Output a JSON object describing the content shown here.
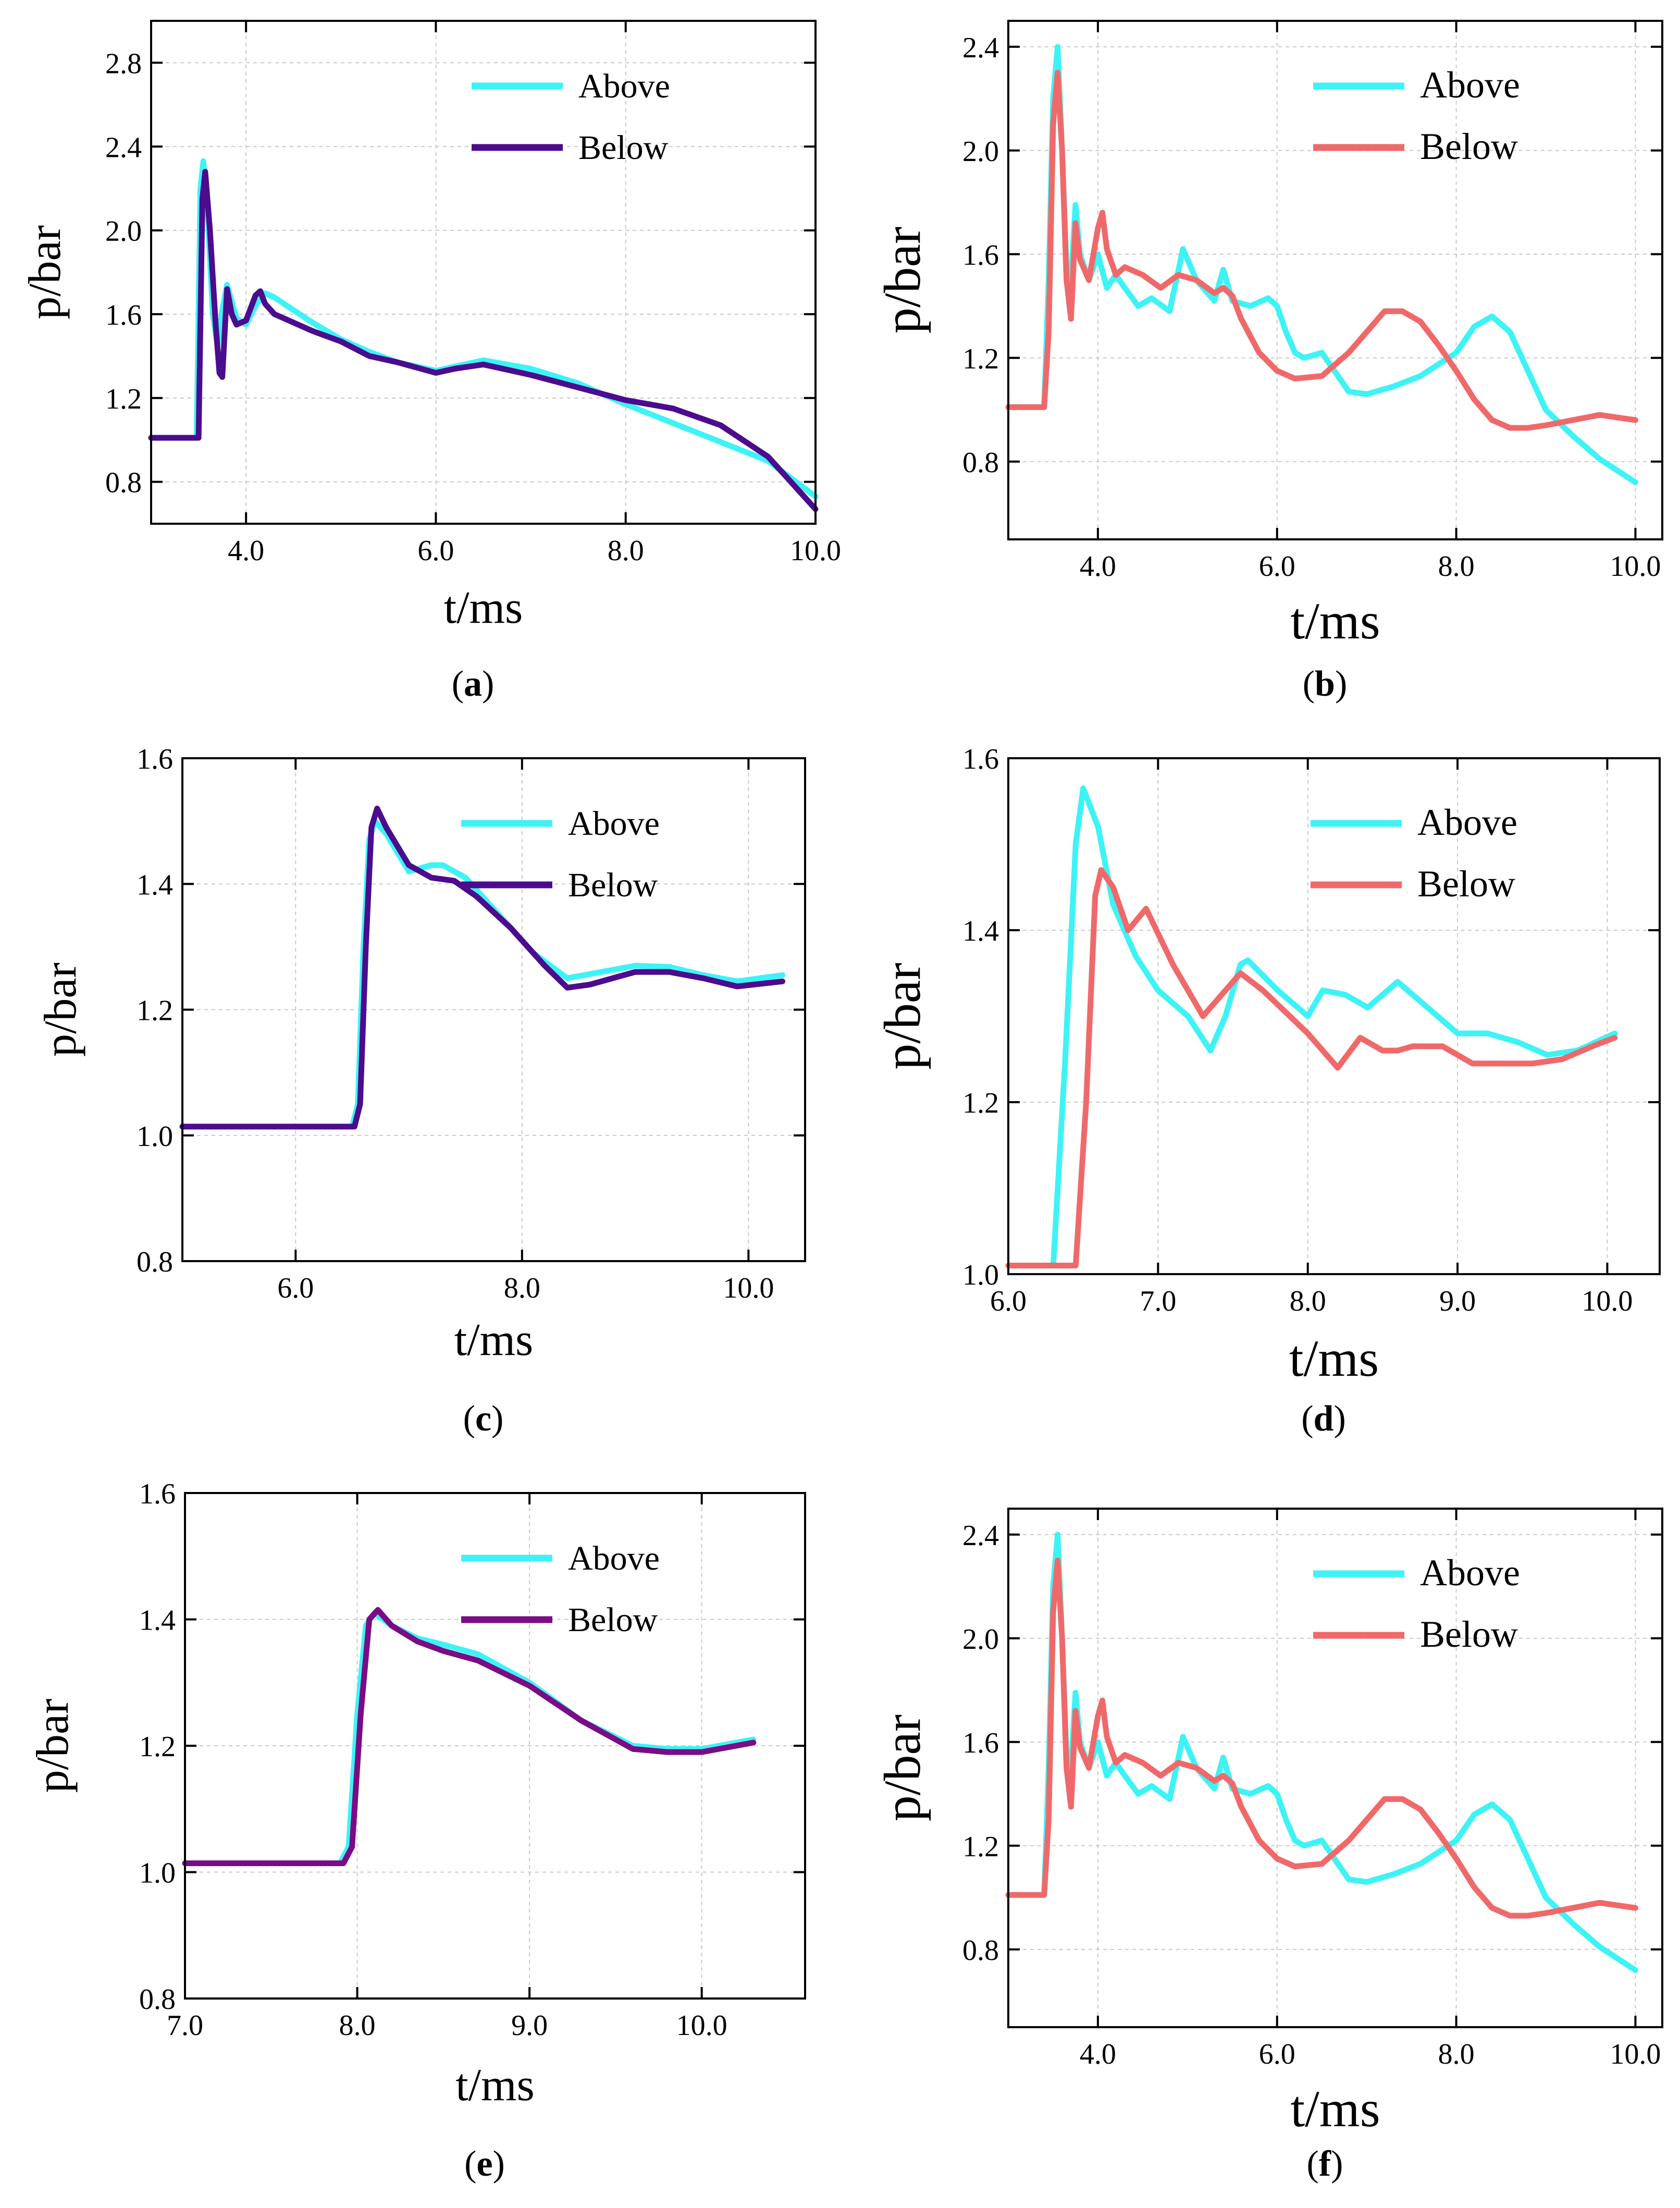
{
  "colors": {
    "above": "#3EF3F6",
    "below_purple": "#4B0C8E",
    "below_violet": "#7A0C86",
    "below_red": "#F0696A"
  },
  "chart_data": [
    {
      "id": "a",
      "caption": "a",
      "type": "line",
      "xlabel": "t/ms",
      "ylabel": "p/bar",
      "xlim": [
        3.0,
        10.0
      ],
      "ylim": [
        0.6,
        3.0
      ],
      "xticks": [
        "4.0",
        "6.0",
        "8.0",
        "10.0"
      ],
      "xtick_values": [
        4.0,
        6.0,
        8.0,
        10.0
      ],
      "yticks": [
        "0.8",
        "1.2",
        "1.6",
        "2.0",
        "2.4",
        "2.8"
      ],
      "ytick_values": [
        0.8,
        1.2,
        1.6,
        2.0,
        2.4,
        2.8
      ],
      "legend": "top-right",
      "grid": true,
      "series": [
        {
          "name": "Above",
          "color": "#3EF3F6",
          "x": [
            3.0,
            3.48,
            3.52,
            3.55,
            3.6,
            3.65,
            3.7,
            3.75,
            3.8,
            3.9,
            4.0,
            4.1,
            4.2,
            4.3,
            4.5,
            4.7,
            5.0,
            5.3,
            5.6,
            6.0,
            6.2,
            6.5,
            7.0,
            7.5,
            8.0,
            8.5,
            9.0,
            9.5,
            10.0
          ],
          "y": [
            1.01,
            1.01,
            2.2,
            2.33,
            2.05,
            1.6,
            1.45,
            1.62,
            1.74,
            1.58,
            1.55,
            1.64,
            1.7,
            1.68,
            1.62,
            1.56,
            1.48,
            1.42,
            1.37,
            1.33,
            1.35,
            1.38,
            1.34,
            1.27,
            1.17,
            1.08,
            0.99,
            0.9,
            0.73
          ]
        },
        {
          "name": "Below",
          "color": "#4B0C8E",
          "x": [
            3.0,
            3.5,
            3.54,
            3.57,
            3.62,
            3.68,
            3.72,
            3.75,
            3.8,
            3.85,
            3.9,
            4.0,
            4.1,
            4.15,
            4.2,
            4.3,
            4.5,
            4.7,
            5.0,
            5.3,
            5.6,
            6.0,
            6.2,
            6.5,
            7.0,
            7.5,
            8.0,
            8.5,
            9.0,
            9.5,
            10.0
          ],
          "y": [
            1.01,
            1.01,
            2.15,
            2.28,
            2.0,
            1.55,
            1.32,
            1.3,
            1.72,
            1.6,
            1.55,
            1.57,
            1.69,
            1.71,
            1.65,
            1.6,
            1.56,
            1.52,
            1.47,
            1.4,
            1.37,
            1.32,
            1.34,
            1.36,
            1.31,
            1.25,
            1.19,
            1.15,
            1.07,
            0.92,
            0.67
          ]
        }
      ]
    },
    {
      "id": "b",
      "caption": "b",
      "type": "line",
      "xlabel": "t/ms",
      "ylabel": "p/bar",
      "xlim": [
        3.0,
        10.3
      ],
      "ylim": [
        0.5,
        2.5
      ],
      "xticks": [
        "4.0",
        "6.0",
        "8.0",
        "10.0"
      ],
      "xtick_values": [
        4.0,
        6.0,
        8.0,
        10.0
      ],
      "yticks": [
        "0.8",
        "1.2",
        "1.6",
        "2.0",
        "2.4"
      ],
      "ytick_values": [
        0.8,
        1.2,
        1.6,
        2.0,
        2.4
      ],
      "legend": "top-right",
      "grid": true,
      "series": [
        {
          "name": "Above",
          "color": "#3EF3F6",
          "x": [
            3.0,
            3.4,
            3.45,
            3.5,
            3.55,
            3.6,
            3.65,
            3.7,
            3.75,
            3.8,
            3.9,
            4.0,
            4.1,
            4.2,
            4.3,
            4.45,
            4.6,
            4.8,
            4.95,
            5.1,
            5.3,
            5.4,
            5.5,
            5.7,
            5.9,
            6.0,
            6.1,
            6.2,
            6.3,
            6.5,
            6.8,
            7.0,
            7.3,
            7.6,
            8.0,
            8.2,
            8.4,
            8.6,
            8.8,
            9.0,
            9.3,
            9.6,
            10.0
          ],
          "y": [
            1.01,
            1.01,
            1.5,
            2.2,
            2.4,
            2.0,
            1.55,
            1.5,
            1.79,
            1.6,
            1.5,
            1.6,
            1.47,
            1.52,
            1.47,
            1.4,
            1.43,
            1.38,
            1.62,
            1.5,
            1.42,
            1.54,
            1.42,
            1.4,
            1.43,
            1.4,
            1.3,
            1.22,
            1.2,
            1.22,
            1.07,
            1.06,
            1.09,
            1.13,
            1.22,
            1.32,
            1.36,
            1.3,
            1.15,
            1.0,
            0.9,
            0.81,
            0.72
          ]
        },
        {
          "name": "Below",
          "color": "#F0696A",
          "x": [
            3.0,
            3.4,
            3.45,
            3.5,
            3.55,
            3.6,
            3.65,
            3.7,
            3.75,
            3.8,
            3.9,
            4.0,
            4.05,
            4.1,
            4.2,
            4.3,
            4.5,
            4.7,
            4.9,
            5.1,
            5.3,
            5.4,
            5.5,
            5.6,
            5.8,
            6.0,
            6.2,
            6.5,
            6.8,
            7.0,
            7.2,
            7.4,
            7.6,
            7.8,
            8.0,
            8.2,
            8.4,
            8.6,
            8.8,
            9.0,
            9.3,
            9.6,
            9.8,
            10.0
          ],
          "y": [
            1.01,
            1.01,
            1.3,
            2.1,
            2.3,
            2.0,
            1.5,
            1.35,
            1.72,
            1.58,
            1.5,
            1.7,
            1.76,
            1.62,
            1.52,
            1.55,
            1.52,
            1.47,
            1.52,
            1.5,
            1.45,
            1.47,
            1.44,
            1.35,
            1.22,
            1.15,
            1.12,
            1.13,
            1.22,
            1.3,
            1.38,
            1.38,
            1.34,
            1.25,
            1.15,
            1.04,
            0.96,
            0.93,
            0.93,
            0.94,
            0.96,
            0.98,
            0.97,
            0.96
          ]
        }
      ]
    },
    {
      "id": "c",
      "caption": "c",
      "type": "line",
      "xlabel": "t/ms",
      "ylabel": "p/bar",
      "xlim": [
        5.0,
        10.5
      ],
      "ylim": [
        0.8,
        1.6
      ],
      "xticks": [
        "6.0",
        "8.0",
        "10.0"
      ],
      "xtick_values": [
        6.0,
        8.0,
        10.0
      ],
      "yticks": [
        "0.8",
        "1.0",
        "1.2",
        "1.4",
        "1.6"
      ],
      "ytick_values": [
        0.8,
        1.0,
        1.2,
        1.4,
        1.6
      ],
      "legend": "top-right",
      "grid": true,
      "series": [
        {
          "name": "Above",
          "color": "#3EF3F6",
          "x": [
            5.0,
            6.5,
            6.55,
            6.6,
            6.65,
            6.7,
            6.8,
            7.0,
            7.2,
            7.3,
            7.5,
            7.8,
            8.1,
            8.4,
            8.7,
            9.0,
            9.3,
            9.6,
            9.9,
            10.3
          ],
          "y": [
            1.014,
            1.014,
            1.05,
            1.3,
            1.47,
            1.5,
            1.48,
            1.42,
            1.43,
            1.43,
            1.41,
            1.35,
            1.29,
            1.25,
            1.26,
            1.27,
            1.268,
            1.255,
            1.245,
            1.255
          ]
        },
        {
          "name": "Below",
          "color": "#4B0C8E",
          "x": [
            5.0,
            6.52,
            6.57,
            6.62,
            6.67,
            6.72,
            6.8,
            7.0,
            7.2,
            7.4,
            7.6,
            7.9,
            8.2,
            8.4,
            8.6,
            8.8,
            9.0,
            9.3,
            9.6,
            9.9,
            10.3
          ],
          "y": [
            1.014,
            1.014,
            1.05,
            1.3,
            1.49,
            1.52,
            1.49,
            1.43,
            1.41,
            1.405,
            1.38,
            1.33,
            1.27,
            1.235,
            1.24,
            1.25,
            1.26,
            1.26,
            1.25,
            1.237,
            1.245
          ]
        }
      ]
    },
    {
      "id": "d",
      "caption": "d",
      "type": "line",
      "xlabel": "t/ms",
      "ylabel": "p/bar",
      "xlim": [
        6.0,
        10.35
      ],
      "ylim": [
        1.0,
        1.6
      ],
      "xticks": [
        "6.0",
        "7.0",
        "8.0",
        "9.0",
        "10.0"
      ],
      "xtick_values": [
        6.0,
        7.0,
        8.0,
        9.0,
        10.0
      ],
      "yticks": [
        "1.0",
        "1.2",
        "1.4",
        "1.6"
      ],
      "ytick_values": [
        1.0,
        1.2,
        1.4,
        1.6
      ],
      "legend": "top-right",
      "grid": true,
      "series": [
        {
          "name": "Above",
          "color": "#3EF3F6",
          "x": [
            6.0,
            6.3,
            6.38,
            6.45,
            6.5,
            6.6,
            6.7,
            6.85,
            7.0,
            7.2,
            7.35,
            7.45,
            7.55,
            7.6,
            7.8,
            8.0,
            8.1,
            8.25,
            8.4,
            8.6,
            8.8,
            9.0,
            9.2,
            9.4,
            9.6,
            9.8,
            10.05
          ],
          "y": [
            1.01,
            1.01,
            1.25,
            1.5,
            1.565,
            1.52,
            1.43,
            1.37,
            1.33,
            1.3,
            1.26,
            1.3,
            1.36,
            1.365,
            1.33,
            1.3,
            1.33,
            1.325,
            1.31,
            1.34,
            1.31,
            1.28,
            1.28,
            1.27,
            1.255,
            1.26,
            1.28
          ]
        },
        {
          "name": "Below",
          "color": "#F0696A",
          "x": [
            6.0,
            6.45,
            6.52,
            6.58,
            6.62,
            6.7,
            6.8,
            6.92,
            7.1,
            7.3,
            7.4,
            7.55,
            7.7,
            8.0,
            8.2,
            8.35,
            8.5,
            8.6,
            8.7,
            8.9,
            9.1,
            9.3,
            9.5,
            9.7,
            9.9,
            10.05
          ],
          "y": [
            1.01,
            1.01,
            1.2,
            1.44,
            1.47,
            1.45,
            1.4,
            1.425,
            1.36,
            1.3,
            1.32,
            1.35,
            1.33,
            1.28,
            1.24,
            1.275,
            1.26,
            1.26,
            1.265,
            1.265,
            1.245,
            1.245,
            1.245,
            1.25,
            1.265,
            1.275
          ]
        }
      ]
    },
    {
      "id": "e",
      "caption": "e",
      "type": "line",
      "xlabel": "t/ms",
      "ylabel": "p/bar",
      "xlim": [
        7.0,
        10.6
      ],
      "ylim": [
        0.8,
        1.6
      ],
      "xticks": [
        "7.0",
        "8.0",
        "9.0",
        "10.0"
      ],
      "xtick_values": [
        7.0,
        8.0,
        9.0,
        10.0
      ],
      "yticks": [
        "0.8",
        "1.0",
        "1.2",
        "1.4",
        "1.6"
      ],
      "ytick_values": [
        0.8,
        1.0,
        1.2,
        1.4,
        1.6
      ],
      "legend": "top-right",
      "grid": true,
      "series": [
        {
          "name": "Above",
          "color": "#3EF3F6",
          "x": [
            7.0,
            7.9,
            7.95,
            8.0,
            8.05,
            8.1,
            8.2,
            8.35,
            8.5,
            8.7,
            9.0,
            9.3,
            9.6,
            9.8,
            10.0,
            10.3
          ],
          "y": [
            1.014,
            1.014,
            1.04,
            1.25,
            1.39,
            1.41,
            1.39,
            1.37,
            1.36,
            1.345,
            1.3,
            1.24,
            1.2,
            1.195,
            1.195,
            1.21
          ]
        },
        {
          "name": "Below",
          "color": "#7A0C86",
          "x": [
            7.0,
            7.92,
            7.97,
            8.02,
            8.07,
            8.12,
            8.2,
            8.35,
            8.5,
            8.7,
            9.0,
            9.3,
            9.6,
            9.8,
            10.0,
            10.3
          ],
          "y": [
            1.014,
            1.014,
            1.04,
            1.25,
            1.4,
            1.415,
            1.39,
            1.365,
            1.35,
            1.335,
            1.295,
            1.24,
            1.195,
            1.19,
            1.19,
            1.205
          ]
        }
      ]
    },
    {
      "id": "f",
      "caption": "f",
      "type": "line",
      "xlabel": "t/ms",
      "ylabel": "p/bar",
      "xlim": [
        3.0,
        10.3
      ],
      "ylim": [
        0.5,
        2.5
      ],
      "xticks": [
        "4.0",
        "6.0",
        "8.0",
        "10.0"
      ],
      "xtick_values": [
        4.0,
        6.0,
        8.0,
        10.0
      ],
      "yticks": [
        "0.8",
        "1.2",
        "1.6",
        "2.0",
        "2.4"
      ],
      "ytick_values": [
        0.8,
        1.2,
        1.6,
        2.0,
        2.4
      ],
      "legend": "top-right",
      "grid": true,
      "series": [
        {
          "name": "Above",
          "color": "#3EF3F6",
          "x": [
            3.0,
            3.4,
            3.45,
            3.5,
            3.55,
            3.6,
            3.65,
            3.7,
            3.75,
            3.8,
            3.9,
            4.0,
            4.1,
            4.2,
            4.3,
            4.45,
            4.6,
            4.8,
            4.95,
            5.1,
            5.3,
            5.4,
            5.5,
            5.7,
            5.9,
            6.0,
            6.1,
            6.2,
            6.3,
            6.5,
            6.8,
            7.0,
            7.3,
            7.6,
            8.0,
            8.2,
            8.4,
            8.6,
            8.8,
            9.0,
            9.3,
            9.6,
            10.0
          ],
          "y": [
            1.01,
            1.01,
            1.5,
            2.2,
            2.4,
            2.0,
            1.55,
            1.5,
            1.79,
            1.6,
            1.5,
            1.6,
            1.47,
            1.52,
            1.47,
            1.4,
            1.43,
            1.38,
            1.62,
            1.5,
            1.42,
            1.54,
            1.42,
            1.4,
            1.43,
            1.4,
            1.3,
            1.22,
            1.2,
            1.22,
            1.07,
            1.06,
            1.09,
            1.13,
            1.22,
            1.32,
            1.36,
            1.3,
            1.15,
            1.0,
            0.9,
            0.81,
            0.72
          ]
        },
        {
          "name": "Below",
          "color": "#F0696A",
          "x": [
            3.0,
            3.4,
            3.45,
            3.5,
            3.55,
            3.6,
            3.65,
            3.7,
            3.75,
            3.8,
            3.9,
            4.0,
            4.05,
            4.1,
            4.2,
            4.3,
            4.5,
            4.7,
            4.9,
            5.1,
            5.3,
            5.4,
            5.5,
            5.6,
            5.8,
            6.0,
            6.2,
            6.5,
            6.8,
            7.0,
            7.2,
            7.4,
            7.6,
            7.8,
            8.0,
            8.2,
            8.4,
            8.6,
            8.8,
            9.0,
            9.3,
            9.6,
            9.8,
            10.0
          ],
          "y": [
            1.01,
            1.01,
            1.3,
            2.1,
            2.3,
            2.0,
            1.5,
            1.35,
            1.72,
            1.58,
            1.5,
            1.7,
            1.76,
            1.62,
            1.52,
            1.55,
            1.52,
            1.47,
            1.52,
            1.5,
            1.45,
            1.47,
            1.44,
            1.35,
            1.22,
            1.15,
            1.12,
            1.13,
            1.22,
            1.3,
            1.38,
            1.38,
            1.34,
            1.25,
            1.15,
            1.04,
            0.96,
            0.93,
            0.93,
            0.94,
            0.96,
            0.98,
            0.97,
            0.96
          ]
        }
      ]
    }
  ]
}
